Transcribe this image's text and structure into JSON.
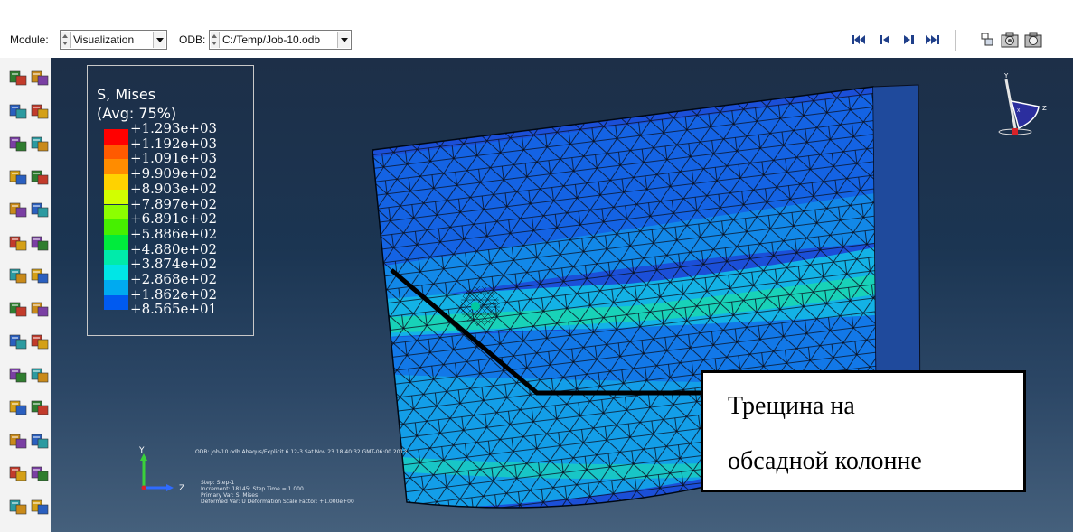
{
  "toolbar": {
    "module_label": "Module:",
    "module_value": "Visualization",
    "odb_label": "ODB:",
    "odb_value": "C:/Temp/Job-10.odb",
    "nav_icons": [
      "first-frame-icon",
      "previous-frame-icon",
      "next-frame-icon",
      "last-frame-icon"
    ],
    "extra_icons": [
      "frame-options-icon",
      "animation-camera-icon",
      "camera-icon"
    ]
  },
  "legend": {
    "title": "S, Mises",
    "subtitle": "(Avg: 75%)",
    "values": [
      "+1.293e+03",
      "+1.192e+03",
      "+1.091e+03",
      "+9.909e+02",
      "+8.903e+02",
      "+7.897e+02",
      "+6.891e+02",
      "+5.886e+02",
      "+4.880e+02",
      "+3.874e+02",
      "+2.868e+02",
      "+1.862e+02",
      "+8.565e+01"
    ],
    "colors": [
      "#ff0000",
      "#ff5a00",
      "#ff8c00",
      "#ffd200",
      "#d2ff00",
      "#8cff00",
      "#46f000",
      "#00eb3c",
      "#00ebaa",
      "#00e6e6",
      "#00aaf0",
      "#005af0",
      "#0000ff"
    ]
  },
  "viewport_info": {
    "odb_line": "ODB: Job-10.odb    Abaqus/Explicit 6.12-3    Sat Nov 23 18:40:32 GMT-06:00 2013",
    "step_line": "Step: Step-1",
    "increment_line": "Increment:    18145: Step Time =    1.000",
    "primary_var_line": "Primary Var: S, Mises",
    "deformed_var_line": "Deformed Var: U   Deformation Scale Factor: +1.000e+00"
  },
  "triad": {
    "y": "Y",
    "z": "Z"
  },
  "view_triad": {
    "y": "Y",
    "z": "Z",
    "x": "X"
  },
  "callout": {
    "line1": "Трещина на",
    "line2": "обсадной колонне"
  },
  "side_tools": [
    "viewport-tile-icon",
    "viewport-cascade-icon",
    "undeformed-shape-icon",
    "deformed-shape-icon",
    "plot-contours-icon",
    "contour-options-icon",
    "symbol-plot-icon",
    "symbol-options-icon",
    "material-orientation-icon",
    "orientation-options-icon",
    "allow-multiple-plot-icon",
    "overlay-icon",
    "animate-scale-icon",
    "animate-time-icon",
    "animate-harmonic-icon",
    "animation-options-icon",
    "create-display-group-icon",
    "result-options-icon",
    "xy-data-icon",
    "xy-manager-icon",
    "path-icon",
    "xy-plot-icon",
    "query-icon",
    "field-output-icon",
    "probe-values-icon",
    "report-icon",
    "common-options-icon",
    "superimpose-icon"
  ]
}
